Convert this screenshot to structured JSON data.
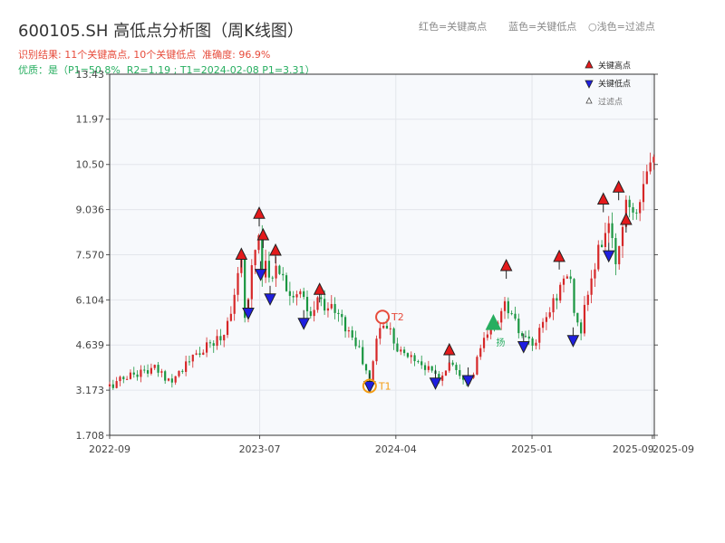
{
  "header": {
    "title": "600105.SH 高低点分析图（周K线图）",
    "summary": "识别结果: 11个关键高点, 10个关键低点  准确度: 96.9%",
    "quality": "优质：是（P1=50.8%  R2=1.19 ; T1=2024-02-08 P1=3.31）",
    "legend_red": "红色=关键高点",
    "legend_blue": "蓝色=关键低点",
    "legend_light": "○浅色=过滤点"
  },
  "colors": {
    "up": "#d62728",
    "down": "#1a9641",
    "high_marker": "#e41a1c",
    "low_marker": "#1f1fe0",
    "plot_bg": "#f7f9fc",
    "grid": "#e3e6eb",
    "t1": "#f39c12",
    "t2": "#e74c3c",
    "buy": "#27ae60"
  },
  "chart_data": {
    "type": "candlestick",
    "ylim": [
      1.708,
      13.43
    ],
    "yticks": [
      "1.708",
      "3.173",
      "4.639",
      "6.104",
      "7.570",
      "9.036",
      "10.50",
      "11.97",
      "13.43"
    ],
    "xlim": [
      "2022-09-01",
      "2025-09-05"
    ],
    "xticks": [
      {
        "date": "2022-09-01",
        "label": "2022-09"
      },
      {
        "date": "2023-07-01",
        "label": "2023-07"
      },
      {
        "date": "2024-04-01",
        "label": "2024-04"
      },
      {
        "date": "2025-01-01",
        "label": "2025-01"
      },
      {
        "date": "2025-09-01",
        "label": "2025-09"
      },
      {
        "date": "2025-09-05",
        "label": "2025-09"
      }
    ],
    "anchors": [
      [
        "2022-09-01",
        3.3
      ],
      [
        "2022-10-15",
        3.7
      ],
      [
        "2022-12-01",
        3.85
      ],
      [
        "2023-01-01",
        3.5
      ],
      [
        "2023-02-15",
        4.2
      ],
      [
        "2023-03-20",
        4.6
      ],
      [
        "2023-04-20",
        5.0
      ],
      [
        "2023-05-25",
        7.2
      ],
      [
        "2023-06-01",
        5.6
      ],
      [
        "2023-06-28",
        8.5
      ],
      [
        "2023-07-07",
        6.7
      ],
      [
        "2023-07-15",
        8.0
      ],
      [
        "2023-07-22",
        6.1
      ],
      [
        "2023-08-01",
        7.5
      ],
      [
        "2023-08-25",
        6.5
      ],
      [
        "2023-09-25",
        6.2
      ],
      [
        "2023-10-10",
        5.4
      ],
      [
        "2023-10-25",
        6.1
      ],
      [
        "2023-11-20",
        5.9
      ],
      [
        "2023-12-15",
        5.4
      ],
      [
        "2024-01-15",
        4.6
      ],
      [
        "2024-02-08",
        3.4
      ],
      [
        "2024-02-25",
        5.2
      ],
      [
        "2024-03-15",
        5.3
      ],
      [
        "2024-04-10",
        4.4
      ],
      [
        "2024-05-10",
        4.2
      ],
      [
        "2024-06-10",
        3.8
      ],
      [
        "2024-07-01",
        3.5
      ],
      [
        "2024-07-20",
        4.2
      ],
      [
        "2024-08-10",
        3.7
      ],
      [
        "2024-09-01",
        3.5
      ],
      [
        "2024-09-20",
        4.6
      ],
      [
        "2024-10-15",
        5.2
      ],
      [
        "2024-11-10",
        6.0
      ],
      [
        "2024-11-25",
        5.4
      ],
      [
        "2024-12-15",
        4.8
      ],
      [
        "2025-01-05",
        4.6
      ],
      [
        "2025-02-20",
        6.3
      ],
      [
        "2025-03-15",
        7.0
      ],
      [
        "2025-04-07",
        4.9
      ],
      [
        "2025-04-25",
        6.4
      ],
      [
        "2025-06-01",
        8.6
      ],
      [
        "2025-06-20",
        7.3
      ],
      [
        "2025-07-10",
        9.4
      ],
      [
        "2025-08-01",
        9.2
      ],
      [
        "2025-08-20",
        10.5
      ],
      [
        "2025-09-05",
        11.2
      ]
    ],
    "key_highs": [
      {
        "date": "2023-05-25",
        "value": 7.57
      },
      {
        "date": "2023-06-30",
        "value": 8.9
      },
      {
        "date": "2023-07-08",
        "value": 8.2
      },
      {
        "date": "2023-08-02",
        "value": 7.7
      },
      {
        "date": "2023-10-30",
        "value": 6.43
      },
      {
        "date": "2024-07-18",
        "value": 4.47
      },
      {
        "date": "2024-11-10",
        "value": 7.2
      },
      {
        "date": "2025-02-25",
        "value": 7.5
      },
      {
        "date": "2025-05-25",
        "value": 9.36
      },
      {
        "date": "2025-06-25",
        "value": 9.75
      },
      {
        "date": "2025-07-10",
        "value": 8.7
      }
    ],
    "key_lows": [
      {
        "date": "2023-06-08",
        "value": 5.69
      },
      {
        "date": "2023-07-03",
        "value": 6.95
      },
      {
        "date": "2023-07-22",
        "value": 6.15
      },
      {
        "date": "2023-09-28",
        "value": 5.36
      },
      {
        "date": "2024-02-08",
        "value": 3.31
      },
      {
        "date": "2024-06-20",
        "value": 3.42
      },
      {
        "date": "2024-08-25",
        "value": 3.5
      },
      {
        "date": "2024-12-15",
        "value": 4.6
      },
      {
        "date": "2025-03-25",
        "value": 4.8
      },
      {
        "date": "2025-06-05",
        "value": 7.55
      }
    ],
    "legend": [
      {
        "label": "关键高点",
        "kind": "high"
      },
      {
        "label": "关键低点",
        "kind": "low"
      },
      {
        "label": "过滤点",
        "kind": "filtered"
      }
    ],
    "annotations": [
      {
        "label": "T1",
        "date": "2024-02-08",
        "value": 3.31
      },
      {
        "label": "T2",
        "date": "2024-03-05",
        "value": 5.55
      }
    ],
    "buy_marker": {
      "label": "扬",
      "date": "2024-10-15",
      "value": 5.2
    }
  }
}
